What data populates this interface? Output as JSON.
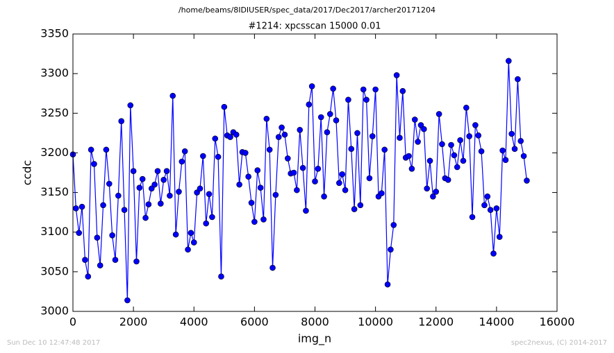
{
  "chart_data": {
    "type": "line",
    "path_title": "/home/beams/8IDIUSER/spec_data/2017/Dec2017/archer20171204",
    "title": "#1214: xpcsscan 15000 0.01",
    "xlabel": "img_n",
    "ylabel": "ccdc",
    "footer_left": "Sun Dec 10 12:47:48 2017",
    "footer_right": "spec2nexus, (C) 2014-2017",
    "color": "#0000ff",
    "x": [
      0,
      100,
      200,
      300,
      400,
      500,
      600,
      700,
      800,
      900,
      1000,
      1100,
      1200,
      1300,
      1400,
      1500,
      1600,
      1700,
      1800,
      1900,
      2000,
      2100,
      2200,
      2300,
      2400,
      2500,
      2600,
      2700,
      2800,
      2900,
      3000,
      3100,
      3200,
      3300,
      3400,
      3500,
      3600,
      3700,
      3800,
      3900,
      4000,
      4100,
      4200,
      4300,
      4400,
      4500,
      4600,
      4700,
      4800,
      4900,
      5000,
      5100,
      5200,
      5300,
      5400,
      5500,
      5600,
      5700,
      5800,
      5900,
      6000,
      6100,
      6200,
      6300,
      6400,
      6500,
      6600,
      6700,
      6800,
      6900,
      7000,
      7100,
      7200,
      7300,
      7400,
      7500,
      7600,
      7700,
      7800,
      7900,
      8000,
      8100,
      8200,
      8300,
      8400,
      8500,
      8600,
      8700,
      8800,
      8900,
      9000,
      9100,
      9200,
      9300,
      9400,
      9500,
      9600,
      9700,
      9800,
      9900,
      10000,
      10100,
      10200,
      10300,
      10400,
      10500,
      10600,
      10700,
      10800,
      10900,
      11000,
      11100,
      11200,
      11300,
      11400,
      11500,
      11600,
      11700,
      11800,
      11900,
      12000,
      12100,
      12200,
      12300,
      12400,
      12500,
      12600,
      12700,
      12800,
      12900,
      13000,
      13100,
      13200,
      13300,
      13400,
      13500,
      13600,
      13700,
      13800,
      13900,
      14000,
      14100,
      14200,
      14300,
      14400,
      14500,
      14600,
      14700,
      14800,
      14900,
      15000
    ],
    "values": [
      3198,
      3130,
      3099,
      3132,
      3065,
      3044,
      3204,
      3186,
      3093,
      3058,
      3134,
      3204,
      3161,
      3096,
      3065,
      3146,
      3240,
      3128,
      3014,
      3260,
      3177,
      3063,
      3156,
      3167,
      3118,
      3135,
      3155,
      3160,
      3177,
      3136,
      3166,
      3177,
      3146,
      3272,
      3097,
      3151,
      3189,
      3202,
      3078,
      3099,
      3087,
      3150,
      3155,
      3196,
      3111,
      3148,
      3119,
      3218,
      3195,
      3044,
      3258,
      3222,
      3220,
      3226,
      3223,
      3160,
      3201,
      3200,
      3170,
      3137,
      3113,
      3178,
      3156,
      3116,
      3243,
      3204,
      3055,
      3147,
      3220,
      3232,
      3223,
      3193,
      3174,
      3175,
      3153,
      3229,
      3181,
      3127,
      3261,
      3284,
      3164,
      3180,
      3245,
      3145,
      3226,
      3249,
      3281,
      3241,
      3162,
      3173,
      3153,
      3267,
      3205,
      3129,
      3225,
      3134,
      3280,
      3267,
      3168,
      3221,
      3280,
      3145,
      3149,
      3204,
      3034,
      3078,
      3109,
      3298,
      3219,
      3278,
      3194,
      3196,
      3180,
      3242,
      3214,
      3235,
      3230,
      3155,
      3190,
      3145,
      3151,
      3249,
      3211,
      3168,
      3166,
      3210,
      3197,
      3182,
      3216,
      3190,
      3257,
      3221,
      3119,
      3235,
      3222,
      3202,
      3134,
      3145,
      3128,
      3073,
      3130,
      3094,
      3203,
      3191,
      3316,
      3224,
      3205,
      3293,
      3215,
      3196,
      3165
    ],
    "xlim": [
      0,
      16000
    ],
    "xticks": [
      0,
      2000,
      4000,
      6000,
      8000,
      10000,
      12000,
      14000,
      16000
    ],
    "ylim": [
      3000,
      3350
    ],
    "yticks": [
      3000,
      3050,
      3100,
      3150,
      3200,
      3250,
      3300,
      3350
    ]
  }
}
